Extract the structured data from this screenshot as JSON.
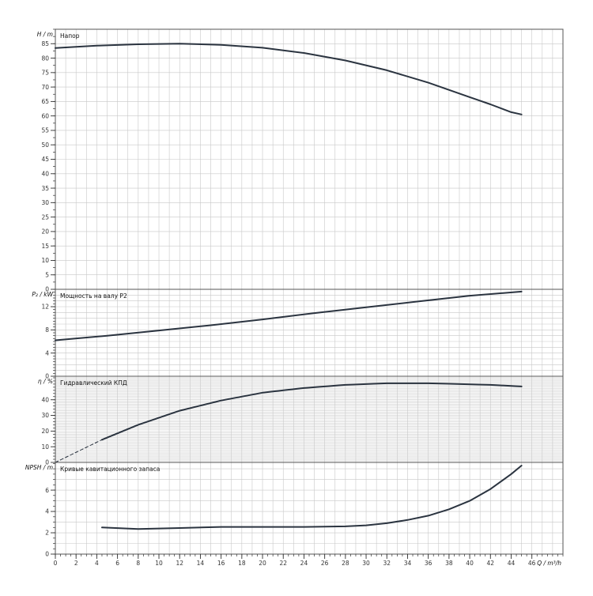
{
  "chart_data": [
    {
      "type": "line",
      "ylabel": "H / m",
      "title": "Напор",
      "ylim": [
        0,
        90
      ],
      "yticks": [
        0,
        5,
        10,
        15,
        20,
        25,
        30,
        35,
        40,
        45,
        50,
        55,
        60,
        65,
        70,
        75,
        80,
        85
      ],
      "series": [
        {
          "style": "solid",
          "x": [
            0,
            4,
            8,
            12,
            16,
            20,
            24,
            28,
            32,
            36,
            40,
            42,
            44,
            45
          ],
          "y": [
            83.5,
            84.3,
            84.8,
            85,
            84.6,
            83.6,
            81.8,
            79.2,
            75.8,
            71.5,
            66.5,
            64.0,
            61.3,
            60.5
          ]
        }
      ]
    },
    {
      "type": "line",
      "ylabel": "P₂ / kW",
      "title": "Мощность на валу P2",
      "ylim": [
        0,
        15
      ],
      "yticks": [
        0,
        4,
        8,
        12
      ],
      "series": [
        {
          "style": "solid",
          "x": [
            0,
            5,
            10,
            15,
            20,
            25,
            30,
            35,
            40,
            45
          ],
          "y": [
            6.2,
            7.0,
            7.9,
            8.8,
            9.8,
            10.9,
            11.9,
            12.9,
            13.9,
            14.6
          ]
        }
      ]
    },
    {
      "type": "line",
      "ylabel": "η / %",
      "title": "Гидравлический КПД",
      "ylim": [
        0,
        55
      ],
      "yticks": [
        0,
        10,
        20,
        30,
        40
      ],
      "series": [
        {
          "style": "dashed",
          "x": [
            0,
            4.5
          ],
          "y": [
            0,
            14.5
          ]
        },
        {
          "style": "solid",
          "x": [
            4.5,
            8,
            12,
            16,
            20,
            24,
            28,
            32,
            36,
            38,
            42,
            45
          ],
          "y": [
            14.5,
            24,
            33,
            39.5,
            44.5,
            47.5,
            49.5,
            50.5,
            50.5,
            50.2,
            49.5,
            48.5
          ]
        }
      ]
    },
    {
      "type": "line",
      "ylabel": "NPSH / m",
      "title": "Кривые кавитационного запаса",
      "xlabel": "Q / m³/h",
      "ylim": [
        0,
        8.6
      ],
      "yticks": [
        0,
        2,
        4,
        6
      ],
      "xticks": [
        0,
        2,
        4,
        6,
        8,
        10,
        12,
        14,
        16,
        18,
        20,
        22,
        24,
        26,
        28,
        30,
        32,
        34,
        36,
        38,
        40,
        42,
        44,
        46
      ],
      "xlim": [
        0,
        49
      ],
      "series": [
        {
          "style": "solid",
          "x": [
            4.5,
            8,
            12,
            16,
            20,
            24,
            28,
            30,
            32,
            34,
            36,
            38,
            40,
            42,
            44,
            45
          ],
          "y": [
            2.5,
            2.35,
            2.45,
            2.55,
            2.55,
            2.55,
            2.6,
            2.7,
            2.9,
            3.2,
            3.6,
            4.2,
            5.0,
            6.1,
            7.5,
            8.3
          ]
        }
      ]
    }
  ],
  "colors": {
    "curve": "#2b3440",
    "grid": "#c8c8c8",
    "frame": "#555555",
    "axis": "#333333"
  }
}
